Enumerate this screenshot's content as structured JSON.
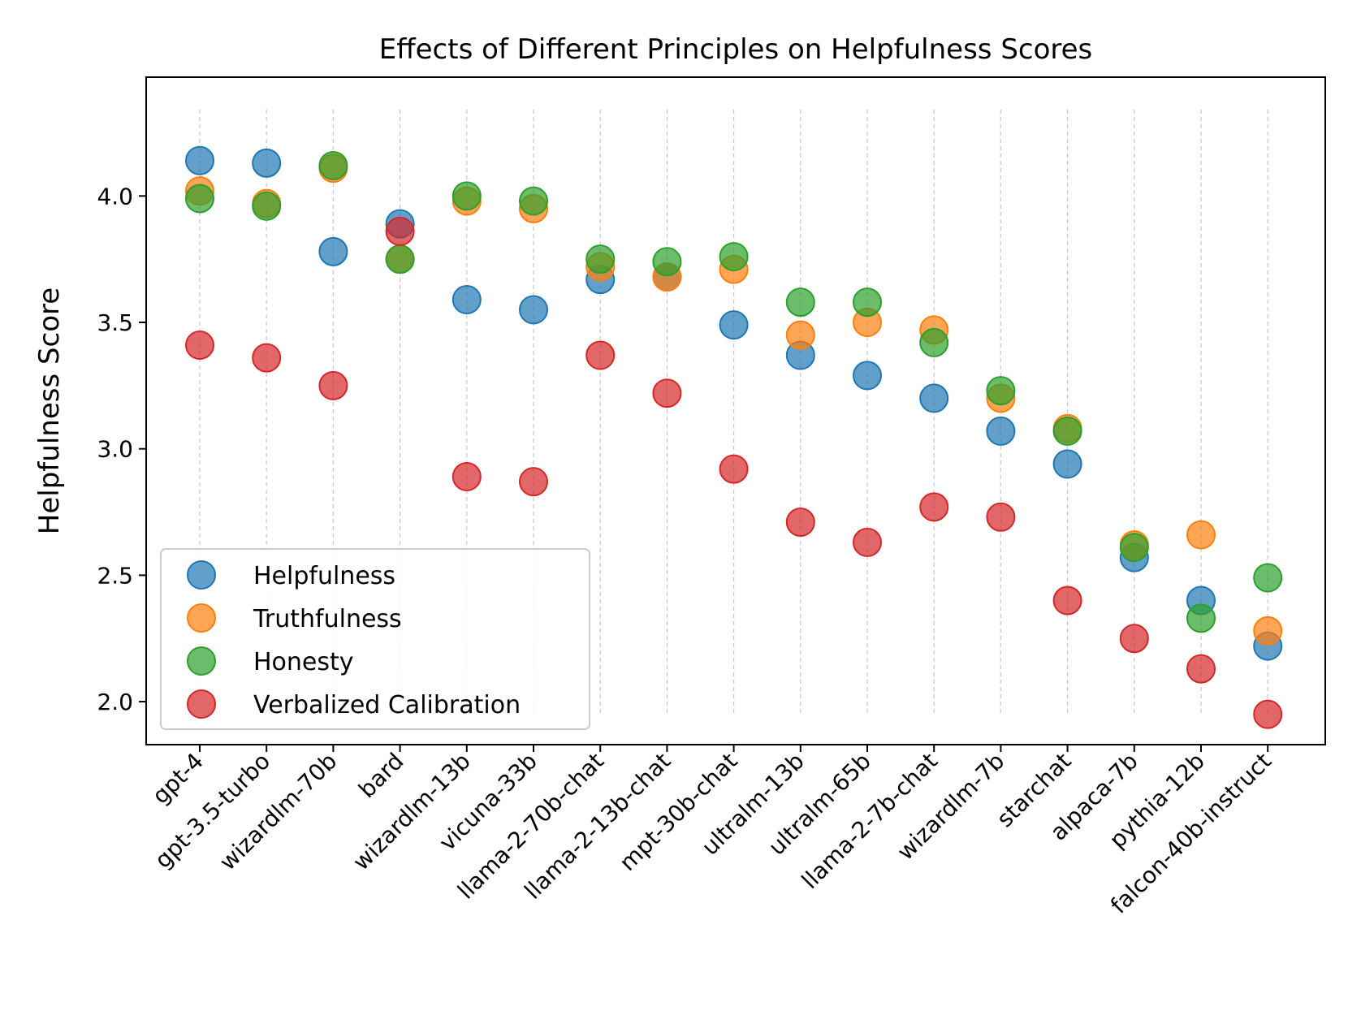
{
  "chart_data": {
    "type": "scatter",
    "title": "Effects of Different Principles on Helpfulness Scores",
    "xlabel": "",
    "ylabel": "Helpfulness Score",
    "ylim": [
      1.83,
      4.47
    ],
    "yticks": [
      "2.0",
      "2.5",
      "3.0",
      "3.5",
      "4.0"
    ],
    "grid": "vertical dashed lines at each category",
    "legend_position": "lower-left",
    "categories": [
      "gpt-4",
      "gpt-3.5-turbo",
      "wizardlm-70b",
      "bard",
      "wizardlm-13b",
      "vicuna-33b",
      "llama-2-70b-chat",
      "llama-2-13b-chat",
      "mpt-30b-chat",
      "ultralm-13b",
      "ultralm-65b",
      "llama-2-7b-chat",
      "wizardlm-7b",
      "starchat",
      "alpaca-7b",
      "pythia-12b",
      "falcon-40b-instruct"
    ],
    "series": [
      {
        "name": "Helpfulness",
        "color": "#1f77b4",
        "values": [
          4.14,
          4.13,
          3.78,
          3.89,
          3.59,
          3.55,
          3.67,
          3.68,
          3.49,
          3.37,
          3.29,
          3.2,
          3.07,
          2.94,
          2.57,
          2.4,
          2.22
        ]
      },
      {
        "name": "Truthfulness",
        "color": "#ff7f0e",
        "values": [
          4.02,
          3.97,
          4.11,
          3.75,
          3.98,
          3.95,
          3.72,
          3.68,
          3.71,
          3.45,
          3.5,
          3.47,
          3.2,
          3.08,
          2.62,
          2.66,
          2.28
        ]
      },
      {
        "name": "Honesty",
        "color": "#2ca02c",
        "values": [
          3.99,
          3.96,
          4.12,
          3.75,
          4.0,
          3.98,
          3.75,
          3.74,
          3.76,
          3.58,
          3.58,
          3.42,
          3.23,
          3.07,
          2.61,
          2.33,
          2.49
        ]
      },
      {
        "name": "Verbalized Calibration",
        "color": "#d62728",
        "values": [
          3.41,
          3.36,
          3.25,
          3.86,
          2.89,
          2.87,
          3.37,
          3.22,
          2.92,
          2.71,
          2.63,
          2.77,
          2.73,
          2.4,
          2.25,
          2.13,
          1.95
        ]
      }
    ]
  }
}
